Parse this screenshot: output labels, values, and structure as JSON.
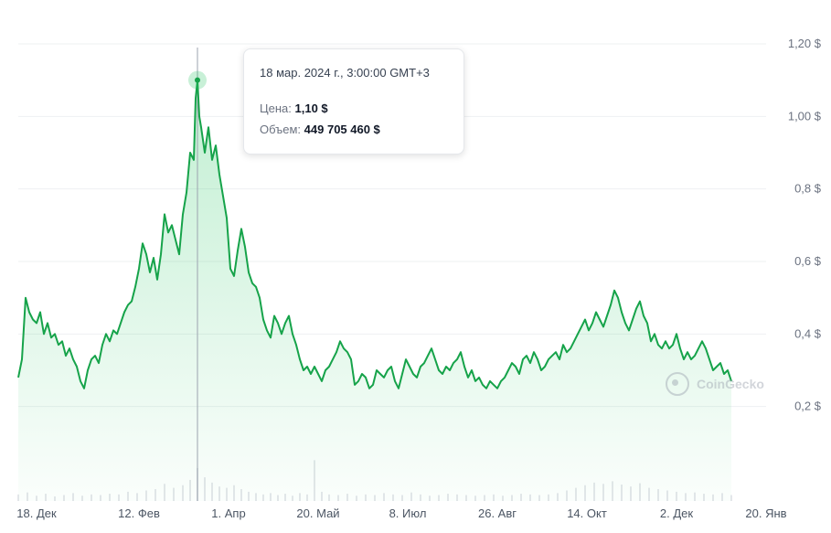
{
  "chart_data": {
    "type": "area",
    "y_ticks": [
      "1,20 $",
      "1,00 $",
      "0,8 $",
      "0,6 $",
      "0,4 $",
      "0,2 $"
    ],
    "y_tick_values": [
      1.2,
      1.0,
      0.8,
      0.6,
      0.4,
      0.2
    ],
    "ylim": [
      0.0,
      1.2
    ],
    "x_ticks": [
      "18. Дек",
      "12. Фев",
      "1. Апр",
      "20. Май",
      "8. Июл",
      "26. Авг",
      "14. Окт",
      "2. Дек",
      "20. Янв"
    ],
    "x_tick_days": [
      0,
      56,
      105,
      154,
      203,
      252,
      301,
      350,
      399
    ],
    "xlim_days": [
      -10,
      404
    ],
    "grid": true,
    "series": [
      {
        "values": [
          [
            -10,
            0.28
          ],
          [
            -8,
            0.33
          ],
          [
            -6,
            0.5
          ],
          [
            -4,
            0.46
          ],
          [
            -2,
            0.44
          ],
          [
            0,
            0.43
          ],
          [
            2,
            0.46
          ],
          [
            4,
            0.4
          ],
          [
            6,
            0.43
          ],
          [
            8,
            0.39
          ],
          [
            10,
            0.4
          ],
          [
            12,
            0.37
          ],
          [
            14,
            0.38
          ],
          [
            16,
            0.34
          ],
          [
            18,
            0.36
          ],
          [
            20,
            0.33
          ],
          [
            22,
            0.31
          ],
          [
            24,
            0.27
          ],
          [
            26,
            0.25
          ],
          [
            28,
            0.3
          ],
          [
            30,
            0.33
          ],
          [
            32,
            0.34
          ],
          [
            34,
            0.32
          ],
          [
            36,
            0.37
          ],
          [
            38,
            0.4
          ],
          [
            40,
            0.38
          ],
          [
            42,
            0.41
          ],
          [
            44,
            0.4
          ],
          [
            46,
            0.43
          ],
          [
            48,
            0.46
          ],
          [
            50,
            0.48
          ],
          [
            52,
            0.49
          ],
          [
            54,
            0.53
          ],
          [
            56,
            0.58
          ],
          [
            58,
            0.65
          ],
          [
            60,
            0.62
          ],
          [
            62,
            0.57
          ],
          [
            64,
            0.61
          ],
          [
            66,
            0.55
          ],
          [
            68,
            0.62
          ],
          [
            70,
            0.73
          ],
          [
            72,
            0.68
          ],
          [
            74,
            0.7
          ],
          [
            76,
            0.66
          ],
          [
            78,
            0.62
          ],
          [
            80,
            0.73
          ],
          [
            82,
            0.79
          ],
          [
            84,
            0.9
          ],
          [
            86,
            0.88
          ],
          [
            87,
            1.05
          ],
          [
            88,
            1.1
          ],
          [
            89,
            1.0
          ],
          [
            90,
            0.97
          ],
          [
            92,
            0.9
          ],
          [
            94,
            0.97
          ],
          [
            96,
            0.88
          ],
          [
            98,
            0.92
          ],
          [
            100,
            0.84
          ],
          [
            102,
            0.78
          ],
          [
            104,
            0.72
          ],
          [
            106,
            0.58
          ],
          [
            108,
            0.56
          ],
          [
            110,
            0.63
          ],
          [
            112,
            0.69
          ],
          [
            114,
            0.64
          ],
          [
            116,
            0.57
          ],
          [
            118,
            0.54
          ],
          [
            120,
            0.53
          ],
          [
            122,
            0.5
          ],
          [
            124,
            0.44
          ],
          [
            126,
            0.41
          ],
          [
            128,
            0.39
          ],
          [
            130,
            0.45
          ],
          [
            132,
            0.43
          ],
          [
            134,
            0.4
          ],
          [
            136,
            0.43
          ],
          [
            138,
            0.45
          ],
          [
            140,
            0.4
          ],
          [
            142,
            0.37
          ],
          [
            144,
            0.33
          ],
          [
            146,
            0.3
          ],
          [
            148,
            0.31
          ],
          [
            150,
            0.29
          ],
          [
            152,
            0.31
          ],
          [
            154,
            0.29
          ],
          [
            156,
            0.27
          ],
          [
            158,
            0.3
          ],
          [
            160,
            0.31
          ],
          [
            162,
            0.33
          ],
          [
            164,
            0.35
          ],
          [
            166,
            0.38
          ],
          [
            168,
            0.36
          ],
          [
            170,
            0.35
          ],
          [
            172,
            0.33
          ],
          [
            174,
            0.26
          ],
          [
            176,
            0.27
          ],
          [
            178,
            0.29
          ],
          [
            180,
            0.28
          ],
          [
            182,
            0.25
          ],
          [
            184,
            0.26
          ],
          [
            186,
            0.3
          ],
          [
            188,
            0.29
          ],
          [
            190,
            0.28
          ],
          [
            192,
            0.3
          ],
          [
            194,
            0.31
          ],
          [
            196,
            0.27
          ],
          [
            198,
            0.25
          ],
          [
            200,
            0.29
          ],
          [
            202,
            0.33
          ],
          [
            204,
            0.31
          ],
          [
            206,
            0.29
          ],
          [
            208,
            0.28
          ],
          [
            210,
            0.31
          ],
          [
            212,
            0.32
          ],
          [
            214,
            0.34
          ],
          [
            216,
            0.36
          ],
          [
            218,
            0.33
          ],
          [
            220,
            0.3
          ],
          [
            222,
            0.29
          ],
          [
            224,
            0.31
          ],
          [
            226,
            0.3
          ],
          [
            228,
            0.32
          ],
          [
            230,
            0.33
          ],
          [
            232,
            0.35
          ],
          [
            234,
            0.31
          ],
          [
            236,
            0.28
          ],
          [
            238,
            0.3
          ],
          [
            240,
            0.27
          ],
          [
            242,
            0.28
          ],
          [
            244,
            0.26
          ],
          [
            246,
            0.25
          ],
          [
            248,
            0.27
          ],
          [
            250,
            0.26
          ],
          [
            252,
            0.25
          ],
          [
            254,
            0.27
          ],
          [
            256,
            0.28
          ],
          [
            258,
            0.3
          ],
          [
            260,
            0.32
          ],
          [
            262,
            0.31
          ],
          [
            264,
            0.29
          ],
          [
            266,
            0.33
          ],
          [
            268,
            0.34
          ],
          [
            270,
            0.32
          ],
          [
            272,
            0.35
          ],
          [
            274,
            0.33
          ],
          [
            276,
            0.3
          ],
          [
            278,
            0.31
          ],
          [
            280,
            0.33
          ],
          [
            282,
            0.34
          ],
          [
            284,
            0.35
          ],
          [
            286,
            0.33
          ],
          [
            288,
            0.37
          ],
          [
            290,
            0.35
          ],
          [
            292,
            0.36
          ],
          [
            294,
            0.38
          ],
          [
            296,
            0.4
          ],
          [
            298,
            0.42
          ],
          [
            300,
            0.44
          ],
          [
            302,
            0.41
          ],
          [
            304,
            0.43
          ],
          [
            306,
            0.46
          ],
          [
            308,
            0.44
          ],
          [
            310,
            0.42
          ],
          [
            312,
            0.45
          ],
          [
            314,
            0.48
          ],
          [
            316,
            0.52
          ],
          [
            318,
            0.5
          ],
          [
            320,
            0.46
          ],
          [
            322,
            0.43
          ],
          [
            324,
            0.41
          ],
          [
            326,
            0.44
          ],
          [
            328,
            0.47
          ],
          [
            330,
            0.49
          ],
          [
            332,
            0.45
          ],
          [
            334,
            0.43
          ],
          [
            336,
            0.38
          ],
          [
            338,
            0.4
          ],
          [
            340,
            0.37
          ],
          [
            342,
            0.36
          ],
          [
            344,
            0.38
          ],
          [
            346,
            0.36
          ],
          [
            348,
            0.37
          ],
          [
            350,
            0.4
          ],
          [
            352,
            0.36
          ],
          [
            354,
            0.33
          ],
          [
            356,
            0.35
          ],
          [
            358,
            0.33
          ],
          [
            360,
            0.34
          ],
          [
            362,
            0.36
          ],
          [
            364,
            0.38
          ],
          [
            366,
            0.36
          ],
          [
            368,
            0.33
          ],
          [
            370,
            0.3
          ],
          [
            372,
            0.31
          ],
          [
            374,
            0.32
          ],
          [
            376,
            0.29
          ],
          [
            378,
            0.3
          ],
          [
            380,
            0.27
          ]
        ],
        "volume": [
          [
            -10,
            0.1
          ],
          [
            -5,
            0.13
          ],
          [
            0,
            0.08
          ],
          [
            5,
            0.11
          ],
          [
            10,
            0.07
          ],
          [
            15,
            0.09
          ],
          [
            20,
            0.12
          ],
          [
            25,
            0.08
          ],
          [
            30,
            0.1
          ],
          [
            35,
            0.09
          ],
          [
            40,
            0.11
          ],
          [
            45,
            0.1
          ],
          [
            50,
            0.14
          ],
          [
            55,
            0.12
          ],
          [
            60,
            0.16
          ],
          [
            65,
            0.18
          ],
          [
            70,
            0.26
          ],
          [
            75,
            0.2
          ],
          [
            80,
            0.24
          ],
          [
            84,
            0.32
          ],
          [
            88,
            0.5
          ],
          [
            92,
            0.36
          ],
          [
            96,
            0.28
          ],
          [
            100,
            0.22
          ],
          [
            104,
            0.2
          ],
          [
            108,
            0.24
          ],
          [
            112,
            0.18
          ],
          [
            116,
            0.14
          ],
          [
            120,
            0.12
          ],
          [
            124,
            0.1
          ],
          [
            128,
            0.12
          ],
          [
            132,
            0.09
          ],
          [
            136,
            0.11
          ],
          [
            140,
            0.08
          ],
          [
            144,
            0.12
          ],
          [
            148,
            0.1
          ],
          [
            152,
            0.62
          ],
          [
            156,
            0.14
          ],
          [
            160,
            0.1
          ],
          [
            165,
            0.09
          ],
          [
            170,
            0.11
          ],
          [
            175,
            0.08
          ],
          [
            180,
            0.1
          ],
          [
            185,
            0.09
          ],
          [
            190,
            0.12
          ],
          [
            195,
            0.1
          ],
          [
            200,
            0.09
          ],
          [
            205,
            0.13
          ],
          [
            210,
            0.1
          ],
          [
            215,
            0.08
          ],
          [
            220,
            0.09
          ],
          [
            225,
            0.11
          ],
          [
            230,
            0.1
          ],
          [
            235,
            0.09
          ],
          [
            240,
            0.08
          ],
          [
            245,
            0.09
          ],
          [
            250,
            0.1
          ],
          [
            255,
            0.08
          ],
          [
            260,
            0.09
          ],
          [
            265,
            0.11
          ],
          [
            270,
            0.1
          ],
          [
            275,
            0.09
          ],
          [
            280,
            0.1
          ],
          [
            285,
            0.12
          ],
          [
            290,
            0.16
          ],
          [
            295,
            0.2
          ],
          [
            300,
            0.24
          ],
          [
            305,
            0.28
          ],
          [
            310,
            0.26
          ],
          [
            315,
            0.3
          ],
          [
            320,
            0.25
          ],
          [
            325,
            0.22
          ],
          [
            330,
            0.27
          ],
          [
            335,
            0.2
          ],
          [
            340,
            0.18
          ],
          [
            345,
            0.16
          ],
          [
            350,
            0.14
          ],
          [
            355,
            0.12
          ],
          [
            360,
            0.13
          ],
          [
            365,
            0.11
          ],
          [
            370,
            0.1
          ],
          [
            375,
            0.12
          ],
          [
            380,
            0.09
          ]
        ]
      }
    ],
    "highlight": {
      "day": 88,
      "date": "18 мар. 2024 г., 3:00:00 GMT+3",
      "price_label": "Цена:",
      "price": "1,10 $",
      "price_value": 1.1,
      "volume_label": "Объем:",
      "volume": "449 705 460 $"
    },
    "line_color": "#16a34a",
    "fill_color": "#22c55e"
  },
  "watermark": "CoinGecko"
}
